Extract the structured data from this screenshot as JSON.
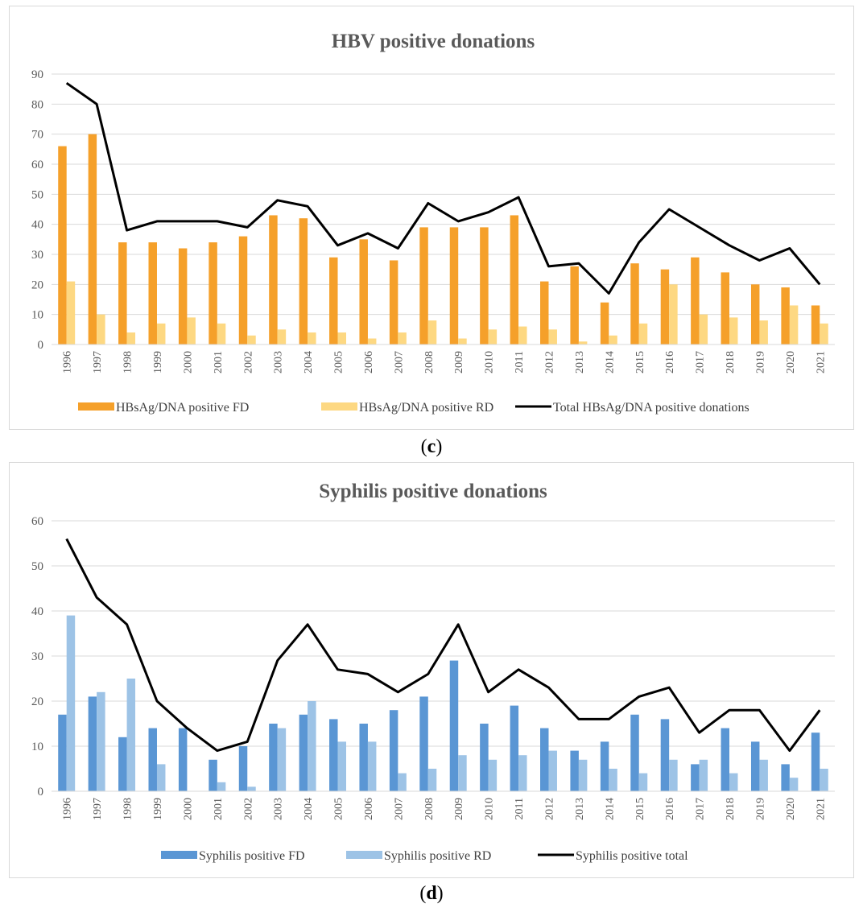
{
  "captions": {
    "c": "c",
    "d": "d"
  },
  "colors": {
    "hbv_fd": "#f5a02a",
    "hbv_rd": "#fdd882",
    "syph_fd": "#5a96d4",
    "syph_rd": "#9dc3e6",
    "total": "#000000",
    "grid": "#d9d9d9",
    "tick_text": "#595959",
    "title_text": "#595959"
  },
  "chart_data": [
    {
      "type": "bar",
      "title": "HBV positive donations",
      "xlabel": "",
      "ylabel": "",
      "ylim": [
        0,
        90
      ],
      "yticks": [
        0,
        10,
        20,
        30,
        40,
        50,
        60,
        70,
        80,
        90
      ],
      "grid": true,
      "legend_position": "bottom",
      "categories": [
        "1996",
        "1997",
        "1998",
        "1999",
        "2000",
        "2001",
        "2002",
        "2003",
        "2004",
        "2005",
        "2006",
        "2007",
        "2008",
        "2009",
        "2010",
        "2011",
        "2012",
        "2013",
        "2014",
        "2015",
        "2016",
        "2017",
        "2018",
        "2019",
        "2020",
        "2021"
      ],
      "series": [
        {
          "name": "HBsAg/DNA positive FD",
          "kind": "bar",
          "color": "#f5a02a",
          "values": [
            66,
            70,
            34,
            34,
            32,
            34,
            36,
            43,
            42,
            29,
            35,
            28,
            39,
            39,
            39,
            43,
            21,
            26,
            14,
            27,
            25,
            29,
            24,
            20,
            19,
            13
          ]
        },
        {
          "name": "HBsAg/DNA positive RD",
          "kind": "bar",
          "color": "#fdd882",
          "values": [
            21,
            10,
            4,
            7,
            9,
            7,
            3,
            5,
            4,
            4,
            2,
            4,
            8,
            2,
            5,
            6,
            5,
            1,
            3,
            7,
            20,
            10,
            9,
            8,
            13,
            7
          ]
        },
        {
          "name": "Total HBsAg/DNA positive donations",
          "kind": "line",
          "color": "#000000",
          "values": [
            87,
            80,
            38,
            41,
            41,
            41,
            39,
            48,
            46,
            33,
            37,
            32,
            47,
            41,
            44,
            49,
            26,
            27,
            17,
            34,
            45,
            39,
            33,
            28,
            32,
            20
          ]
        }
      ]
    },
    {
      "type": "bar",
      "title": "Syphilis positive donations",
      "xlabel": "",
      "ylabel": "",
      "ylim": [
        0,
        60
      ],
      "yticks": [
        0,
        10,
        20,
        30,
        40,
        50,
        60
      ],
      "grid": true,
      "legend_position": "bottom",
      "categories": [
        "1996",
        "1997",
        "1998",
        "1999",
        "2000",
        "2001",
        "2002",
        "2003",
        "2004",
        "2005",
        "2006",
        "2007",
        "2008",
        "2009",
        "2010",
        "2011",
        "2012",
        "2013",
        "2014",
        "2015",
        "2016",
        "2017",
        "2018",
        "2019",
        "2020",
        "2021"
      ],
      "series": [
        {
          "name": "Syphilis positive FD",
          "kind": "bar",
          "color": "#5a96d4",
          "values": [
            17,
            21,
            12,
            14,
            14,
            7,
            10,
            15,
            17,
            16,
            15,
            18,
            21,
            29,
            15,
            19,
            14,
            9,
            11,
            17,
            16,
            6,
            14,
            11,
            6,
            13
          ]
        },
        {
          "name": "Syphilis positive RD",
          "kind": "bar",
          "color": "#9dc3e6",
          "values": [
            39,
            22,
            25,
            6,
            0,
            2,
            1,
            14,
            20,
            11,
            11,
            4,
            5,
            8,
            7,
            8,
            9,
            7,
            5,
            4,
            7,
            7,
            4,
            7,
            3,
            5
          ]
        },
        {
          "name": "Syphilis positive total",
          "kind": "line",
          "color": "#000000",
          "values": [
            56,
            43,
            37,
            20,
            14,
            9,
            11,
            29,
            37,
            27,
            26,
            22,
            26,
            37,
            22,
            27,
            23,
            16,
            16,
            21,
            23,
            13,
            18,
            18,
            9,
            18
          ]
        }
      ]
    }
  ]
}
